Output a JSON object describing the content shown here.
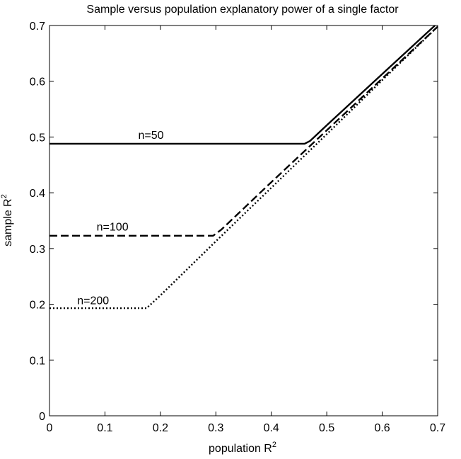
{
  "chart_data": {
    "type": "line",
    "title": "Sample versus population explanatory power of a single factor",
    "xlabel": "population R",
    "xlabel_sup": "2",
    "ylabel": "sample R",
    "ylabel_sup": "2",
    "xlim": [
      0,
      0.7
    ],
    "ylim": [
      0,
      0.7
    ],
    "xticks": [
      "0",
      "0.1",
      "0.2",
      "0.3",
      "0.4",
      "0.5",
      "0.6",
      "0.7"
    ],
    "yticks": [
      "0",
      "0.1",
      "0.2",
      "0.3",
      "0.4",
      "0.5",
      "0.6",
      "0.7"
    ],
    "grid": false,
    "series": [
      {
        "style": "solid",
        "color": "#000000",
        "x": [
          0,
          0.46,
          0.47,
          0.5,
          0.6,
          0.7
        ],
        "y": [
          0.488,
          0.488,
          0.493,
          0.521,
          0.613,
          0.705
        ]
      },
      {
        "style": "dashed",
        "color": "#000000",
        "x": [
          0,
          0.295,
          0.31,
          0.4,
          0.5,
          0.6,
          0.7
        ],
        "y": [
          0.323,
          0.323,
          0.334,
          0.419,
          0.512,
          0.605,
          0.698
        ]
      },
      {
        "style": "dotted",
        "color": "#000000",
        "x": [
          0,
          0.175,
          0.2,
          0.3,
          0.4,
          0.5,
          0.6,
          0.7
        ],
        "y": [
          0.193,
          0.193,
          0.216,
          0.313,
          0.409,
          0.505,
          0.602,
          0.698
        ]
      }
    ],
    "annotations": [
      {
        "text": "n=50",
        "x": 0.16,
        "y": 0.497
      },
      {
        "text": "n=100",
        "x": 0.085,
        "y": 0.332
      },
      {
        "text": "n=200",
        "x": 0.05,
        "y": 0.2
      }
    ]
  }
}
